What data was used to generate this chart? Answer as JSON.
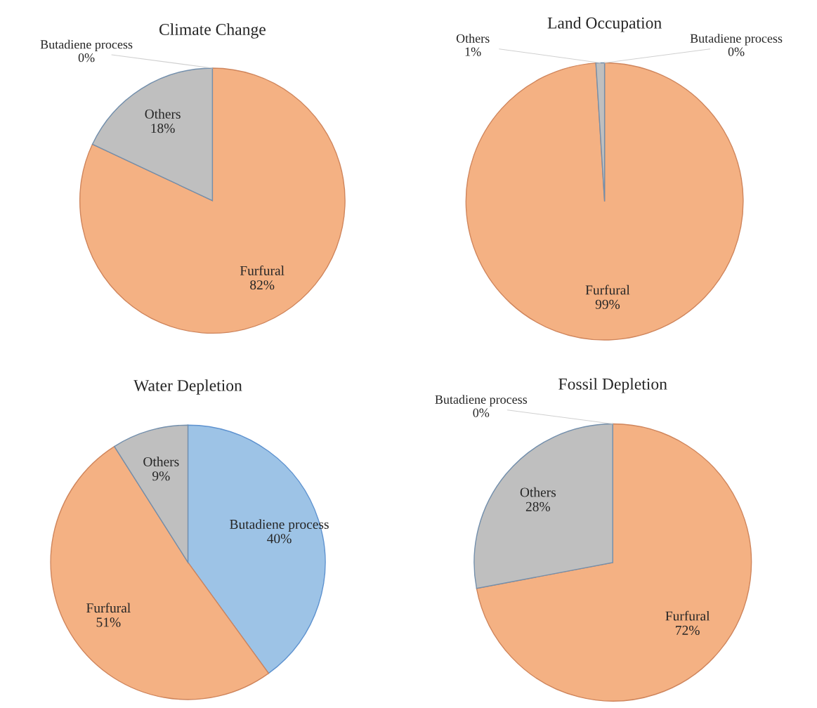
{
  "chart_data": [
    {
      "type": "pie",
      "title": "Climate Change",
      "categories": [
        "Butadiene process",
        "Furfural",
        "Others"
      ],
      "values": [
        0,
        82,
        18
      ],
      "value_labels": [
        "0%",
        "82%",
        "18%"
      ],
      "colors": [
        "#9dc3e6",
        "#f4b183",
        "#bfbfbf"
      ]
    },
    {
      "type": "pie",
      "title": "Land Occupation",
      "categories": [
        "Butadiene process",
        "Furfural",
        "Others"
      ],
      "values": [
        0,
        99,
        1
      ],
      "value_labels": [
        "0%",
        "99%",
        "1%"
      ],
      "colors": [
        "#9dc3e6",
        "#f4b183",
        "#bfbfbf"
      ]
    },
    {
      "type": "pie",
      "title": "Water Depletion",
      "categories": [
        "Butadiene process",
        "Furfural",
        "Others"
      ],
      "values": [
        40,
        51,
        9
      ],
      "value_labels": [
        "40%",
        "51%",
        "9%"
      ],
      "colors": [
        "#9dc3e6",
        "#f4b183",
        "#bfbfbf"
      ]
    },
    {
      "type": "pie",
      "title": "Fossil Depletion",
      "categories": [
        "Butadiene process",
        "Furfural",
        "Others"
      ],
      "values": [
        0,
        72,
        28
      ],
      "value_labels": [
        "0%",
        "72%",
        "28%"
      ],
      "colors": [
        "#9dc3e6",
        "#f4b183",
        "#bfbfbf"
      ]
    }
  ]
}
